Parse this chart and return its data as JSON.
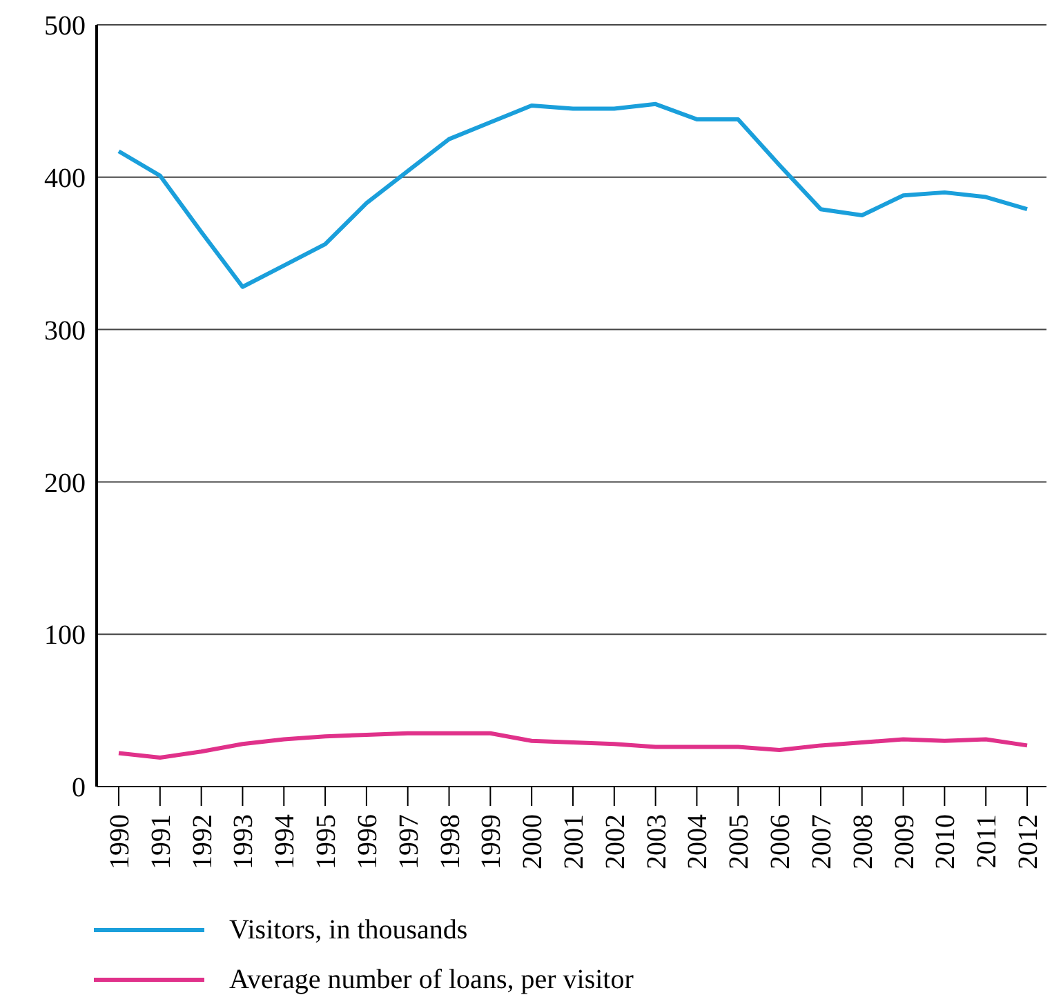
{
  "chart_data": {
    "type": "line",
    "categories": [
      "1990",
      "1991",
      "1992",
      "1993",
      "1994",
      "1995",
      "1996",
      "1997",
      "1998",
      "1999",
      "2000",
      "2001",
      "2002",
      "2003",
      "2004",
      "2005",
      "2006",
      "2007",
      "2008",
      "2009",
      "2010",
      "2011",
      "2012"
    ],
    "series": [
      {
        "name": "Visitors, in thousands",
        "color": "#1a9fdb",
        "values": [
          417,
          401,
          364,
          328,
          342,
          356,
          383,
          404,
          425,
          436,
          447,
          445,
          445,
          448,
          438,
          438,
          408,
          379,
          375,
          388,
          390,
          387,
          379
        ]
      },
      {
        "name": "Average number of loans, per visitor",
        "color": "#e0318a",
        "values": [
          22,
          19,
          23,
          28,
          31,
          33,
          34,
          35,
          35,
          35,
          30,
          29,
          28,
          26,
          26,
          26,
          24,
          27,
          29,
          31,
          30,
          31,
          27
        ]
      }
    ],
    "ylim": [
      0,
      500
    ],
    "yticks": [
      0,
      100,
      200,
      300,
      400,
      500
    ],
    "grid": "y",
    "legend": "bottom",
    "marker": "none",
    "line_style": "solid"
  }
}
